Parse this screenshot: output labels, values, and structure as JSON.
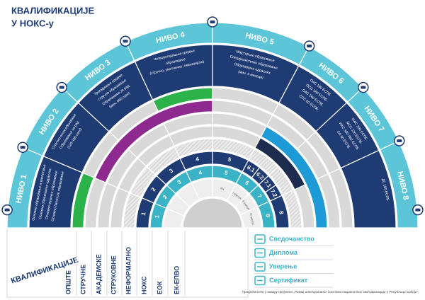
{
  "header": {
    "title": [
      "КВАЛИФИКАЦИЈЕ",
      "У НОКС-у"
    ]
  },
  "levels": [
    {
      "label": "НИВО 1",
      "lines": [
        "Основно образовање и васпитање",
        "Основно образовање одраслих",
        "Основно музичко образовање",
        "Основно балетско образовање"
      ]
    },
    {
      "label": "НИВО 2",
      "lines": [
        "Стручно оспособљавање",
        "Образовање за рад",
        "(120-180 сати)"
      ]
    },
    {
      "label": "НИВО 3",
      "lines": [
        "Трогодишње средње",
        "стручно образовање",
        "Образовање за рад",
        "(мин. 960 сати)"
      ]
    },
    {
      "label": "НИВО 4",
      "lines": [
        "Четворогодишње средње",
        "образовање",
        "(стручно, уметничко, гимназијско)"
      ]
    },
    {
      "label": "НИВО 5",
      "lines": [
        "Мајсторско образовање",
        "Специјалистичко образовање",
        "Образовање одраслих",
        "(мин. 6 месеци)"
      ]
    },
    {
      "label": "НИВО 6",
      "lines": [
        "ОАС 180 ЕСПБ",
        "ОСС 180 ЕСПБ",
        "ОАС 240 ЕСПБ",
        "ССС 60 ЕСПБ"
      ]
    },
    {
      "label": "НИВО 7",
      "lines": [
        "МАС 300 ЕСПБ",
        "МСС 120 ЕСПБ",
        "ИАС 300-360 ЕСПБ",
        "СА 60 ЕСПБ"
      ]
    },
    {
      "label": "НИВО 8",
      "lines": [
        "ДС 180 ЕСПБ"
      ]
    }
  ],
  "columns": [
    "ОПШТЕ",
    "СТРУЧНЕ",
    "АКАДЕМСКЕ",
    "СТРУКОВНЕ",
    "НЕФОРМАЛНО",
    "НОКС",
    "ЕОК",
    "ЕК-ЕПВО"
  ],
  "side_label": "КВАЛИФИКАЦИЈЕ",
  "noks": [
    "1",
    "2",
    "3",
    "4",
    "5",
    "6.1",
    "6.2",
    "7.1",
    "7.2",
    "8"
  ],
  "eok": [
    "1",
    "2",
    "3",
    "4",
    "5",
    "6",
    "7",
    "8"
  ],
  "ek_epvo": [
    "КЦ",
    "I циклус",
    "II циклус",
    "III циклус"
  ],
  "legend": [
    "Сведочанство",
    "Диплома",
    "Уверење",
    "Сертификат"
  ],
  "footer": "Припремљено у оквиру пројекта „Развој интегрисаног система националних квалификација у Републици Србији“"
}
